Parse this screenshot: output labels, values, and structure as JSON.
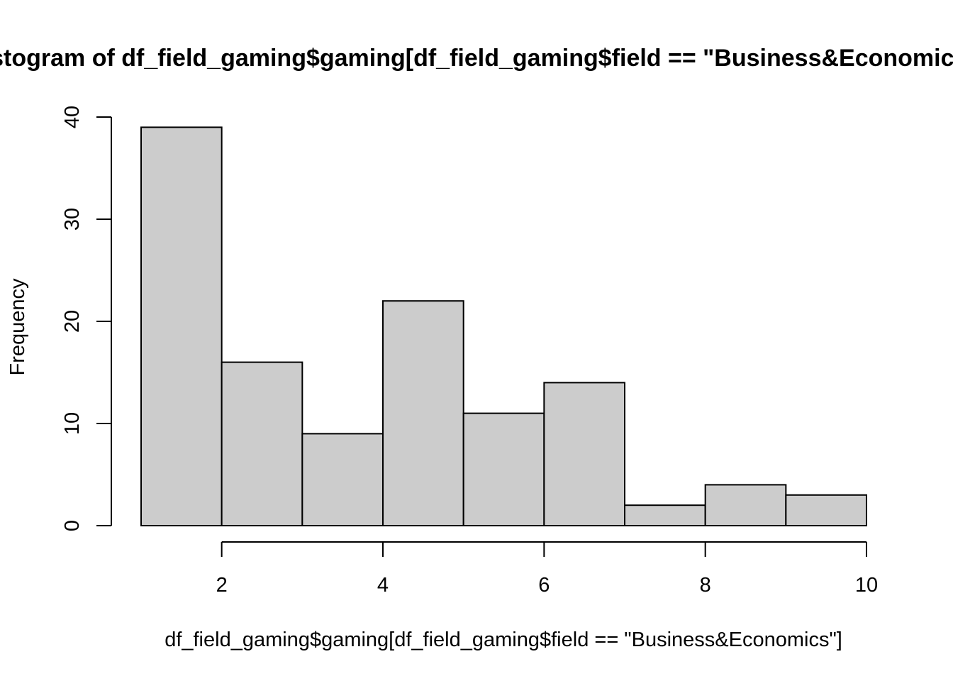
{
  "chart_data": {
    "type": "bar",
    "title": "Histogram of df_field_gaming$gaming[df_field_gaming$field == \"Business&Economics\"]",
    "xlabel": "df_field_gaming$gaming[df_field_gaming$field == \"Business&Economics\"]",
    "ylabel": "Frequency",
    "bins": [
      {
        "start": 1,
        "end": 2,
        "count": 39
      },
      {
        "start": 2,
        "end": 3,
        "count": 16
      },
      {
        "start": 3,
        "end": 4,
        "count": 9
      },
      {
        "start": 4,
        "end": 5,
        "count": 22
      },
      {
        "start": 5,
        "end": 6,
        "count": 11
      },
      {
        "start": 6,
        "end": 7,
        "count": 14
      },
      {
        "start": 7,
        "end": 8,
        "count": 2
      },
      {
        "start": 8,
        "end": 9,
        "count": 4
      },
      {
        "start": 9,
        "end": 10,
        "count": 3
      }
    ],
    "x_ticks": [
      "2",
      "4",
      "6",
      "8",
      "10"
    ],
    "y_ticks": [
      "0",
      "10",
      "20",
      "30",
      "40"
    ],
    "xlim": [
      1,
      10
    ],
    "ylim": [
      0,
      40
    ],
    "grid": false,
    "legend": "none",
    "bar_fill": "#cccccc",
    "bar_stroke": "#000000"
  }
}
